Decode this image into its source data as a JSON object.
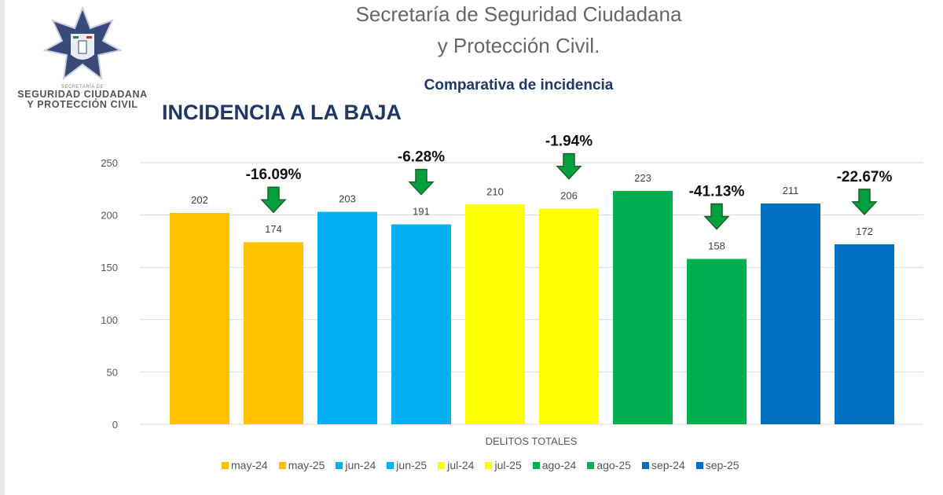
{
  "header": {
    "title_line1": "Secretaría de Seguridad Ciudadana",
    "title_line2": "y Protección Civil.",
    "subtitle": "Comparativa de incidencia",
    "heading": "INCIDENCIA A LA BAJA"
  },
  "logo": {
    "line1": "SECRETARÍA DE",
    "line2": "SEGURIDAD CIUDADANA",
    "line3": "Y PROTECCIÓN CIVIL"
  },
  "chart_data": {
    "type": "bar",
    "xlabel": "DELITOS TOTALES",
    "ylim": [
      0,
      250
    ],
    "yticks": [
      0,
      50,
      100,
      150,
      200,
      250
    ],
    "grid": true,
    "legend_position": "bottom",
    "series": [
      {
        "name": "may-24",
        "value": 202,
        "color": "#FFC000"
      },
      {
        "name": "may-25",
        "value": 174,
        "color": "#FFC000"
      },
      {
        "name": "jun-24",
        "value": 203,
        "color": "#00B0F0"
      },
      {
        "name": "jun-25",
        "value": 191,
        "color": "#00B0F0"
      },
      {
        "name": "jul-24",
        "value": 210,
        "color": "#FFFF00"
      },
      {
        "name": "jul-25",
        "value": 206,
        "color": "#FFFF00"
      },
      {
        "name": "ago-24",
        "value": 223,
        "color": "#00B050"
      },
      {
        "name": "ago-25",
        "value": 158,
        "color": "#00B050"
      },
      {
        "name": "sep-24",
        "value": 211,
        "color": "#0070C0"
      },
      {
        "name": "sep-25",
        "value": 172,
        "color": "#0070C0"
      }
    ],
    "annotations": [
      {
        "bar": "may-25",
        "text": "-16.09%",
        "icon": "down-arrow-icon"
      },
      {
        "bar": "jun-25",
        "text": "-6.28%",
        "icon": "down-arrow-icon"
      },
      {
        "bar": "jul-25",
        "text": "-1.94%",
        "icon": "down-arrow-icon"
      },
      {
        "bar": "ago-25",
        "text": "-41.13%",
        "icon": "down-arrow-icon"
      },
      {
        "bar": "sep-25",
        "text": "-22.67%",
        "icon": "down-arrow-icon"
      }
    ],
    "arrow_color": "#00A03C"
  }
}
